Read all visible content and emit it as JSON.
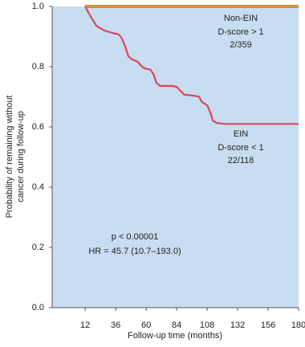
{
  "chart_data": {
    "type": "line",
    "x_label": "Follow-up time (months)",
    "y_label_lines": [
      "Probability of remaining without",
      "cancer during follow-up"
    ],
    "xlim": [
      -14,
      180
    ],
    "xticks": [
      12,
      36,
      60,
      84,
      108,
      132,
      156,
      180
    ],
    "ylim": [
      0,
      1
    ],
    "yticks": [
      {
        "value": 0,
        "label": "0.0"
      },
      0.2,
      0.4,
      0.6,
      0.8,
      {
        "value": 1,
        "label": "1.0"
      }
    ],
    "series": [
      {
        "color": "#d98c3f",
        "x": [
          12,
          180
        ],
        "values": [
          1.0,
          1.0
        ]
      },
      {
        "color": "#d8485c",
        "x": [
          12,
          14.5,
          18,
          21,
          27,
          33.5,
          38.5,
          41,
          43.5,
          46,
          49,
          53.5,
          56,
          58.5,
          63.5,
          66,
          68,
          71,
          80.5,
          84,
          87,
          90,
          96.5,
          101.5,
          104,
          108,
          110.5,
          112.5,
          115.5,
          122,
          180
        ],
        "values": [
          1.0,
          0.98,
          0.955,
          0.935,
          0.92,
          0.912,
          0.907,
          0.893,
          0.867,
          0.835,
          0.824,
          0.816,
          0.803,
          0.795,
          0.79,
          0.773,
          0.747,
          0.736,
          0.736,
          0.733,
          0.72,
          0.707,
          0.704,
          0.701,
          0.683,
          0.672,
          0.648,
          0.621,
          0.613,
          0.61,
          0.61
        ]
      }
    ],
    "annotations": [
      "Non-EIN",
      "D-score > 1",
      "2/359",
      "EIN",
      "D-score < 1",
      "22/118",
      "p < 0.00001",
      "HR = 45.7 (10.7–193.0)"
    ]
  }
}
